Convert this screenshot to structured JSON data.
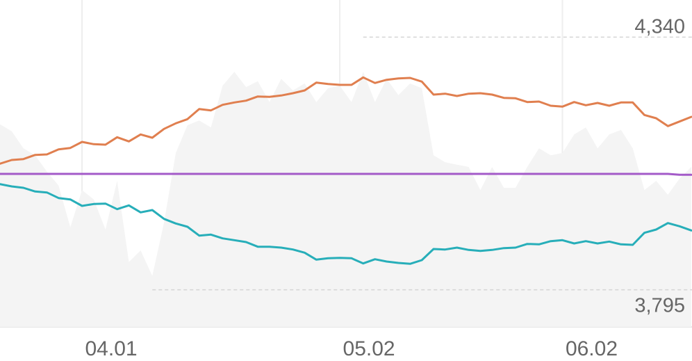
{
  "chart_data": {
    "type": "line",
    "title": "",
    "xlabel": "",
    "ylabel": "",
    "x_ticks": [
      {
        "label": "04.01",
        "index": 7
      },
      {
        "label": "05.02",
        "index": 29
      },
      {
        "label": "06.02",
        "index": 48
      }
    ],
    "ylim": [
      3715,
      4420
    ],
    "grid": {
      "vertical": true,
      "horizontal": false
    },
    "legend": "none",
    "colors": {
      "upper": "#e07f4f",
      "lower": "#27aeb9",
      "middle": "#a35ac8",
      "area": "#f4f4f4",
      "grid": "#eeeeee",
      "axis": "#e6e6e6",
      "ref_line": "#d5d5d5",
      "text": "#666666"
    },
    "labels": {
      "max": {
        "text": "4,340",
        "value": 4340
      },
      "min": {
        "text": "3,795",
        "value": 3795
      }
    },
    "series": [
      {
        "role": "upper",
        "values": [
          4067,
          4075,
          4077,
          4086,
          4087,
          4098,
          4101,
          4114,
          4109,
          4108,
          4124,
          4115,
          4130,
          4123,
          4142,
          4154,
          4163,
          4185,
          4182,
          4194,
          4199,
          4203,
          4212,
          4211,
          4214,
          4219,
          4225,
          4242,
          4239,
          4237,
          4237,
          4253,
          4241,
          4248,
          4251,
          4252,
          4244,
          4216,
          4218,
          4213,
          4218,
          4219,
          4216,
          4209,
          4208,
          4200,
          4201,
          4192,
          4190,
          4200,
          4193,
          4198,
          4192,
          4199,
          4199,
          4172,
          4165,
          4148,
          4158,
          4168
        ]
      },
      {
        "role": "lower",
        "values": [
          4023,
          4018,
          4015,
          4007,
          4005,
          3993,
          3990,
          3976,
          3980,
          3981,
          3969,
          3977,
          3962,
          3967,
          3948,
          3938,
          3931,
          3912,
          3914,
          3906,
          3902,
          3898,
          3888,
          3888,
          3886,
          3882,
          3875,
          3860,
          3863,
          3864,
          3863,
          3852,
          3861,
          3856,
          3853,
          3851,
          3859,
          3883,
          3882,
          3886,
          3881,
          3879,
          3881,
          3885,
          3886,
          3894,
          3893,
          3900,
          3902,
          3895,
          3900,
          3895,
          3899,
          3893,
          3892,
          3918,
          3925,
          3939,
          3932,
          3923
        ]
      },
      {
        "role": "middle",
        "values": [
          4045,
          4045,
          4045,
          4045,
          4045,
          4045,
          4045,
          4045,
          4045,
          4045,
          4045,
          4045,
          4045,
          4045,
          4045,
          4045,
          4045,
          4045,
          4045,
          4045,
          4045,
          4045,
          4045,
          4045,
          4045,
          4045,
          4045,
          4045,
          4045,
          4045,
          4045,
          4045,
          4045,
          4045,
          4045,
          4045,
          4045,
          4045,
          4045,
          4045,
          4045,
          4045,
          4045,
          4045,
          4045,
          4045,
          4045,
          4045,
          4045,
          4045,
          4045,
          4045,
          4045,
          4045,
          4045,
          4045,
          4045,
          4045,
          4043,
          4043
        ]
      },
      {
        "role": "area",
        "values": [
          4152,
          4137,
          4100,
          4085,
          4050,
          4020,
          3930,
          4010,
          3990,
          3925,
          4030,
          3855,
          3880,
          3825,
          3940,
          4090,
          4150,
          4160,
          4145,
          4235,
          4265,
          4232,
          4245,
          4200,
          4250,
          4225,
          4240,
          4200,
          4230,
          4235,
          4200,
          4265,
          4200,
          4250,
          4215,
          4240,
          4230,
          4085,
          4070,
          4065,
          4060,
          4010,
          4060,
          4015,
          4015,
          4060,
          4100,
          4085,
          4090,
          4130,
          4145,
          4100,
          4130,
          4140,
          4100,
          4010,
          4030,
          4000,
          4035,
          4060
        ]
      }
    ]
  }
}
